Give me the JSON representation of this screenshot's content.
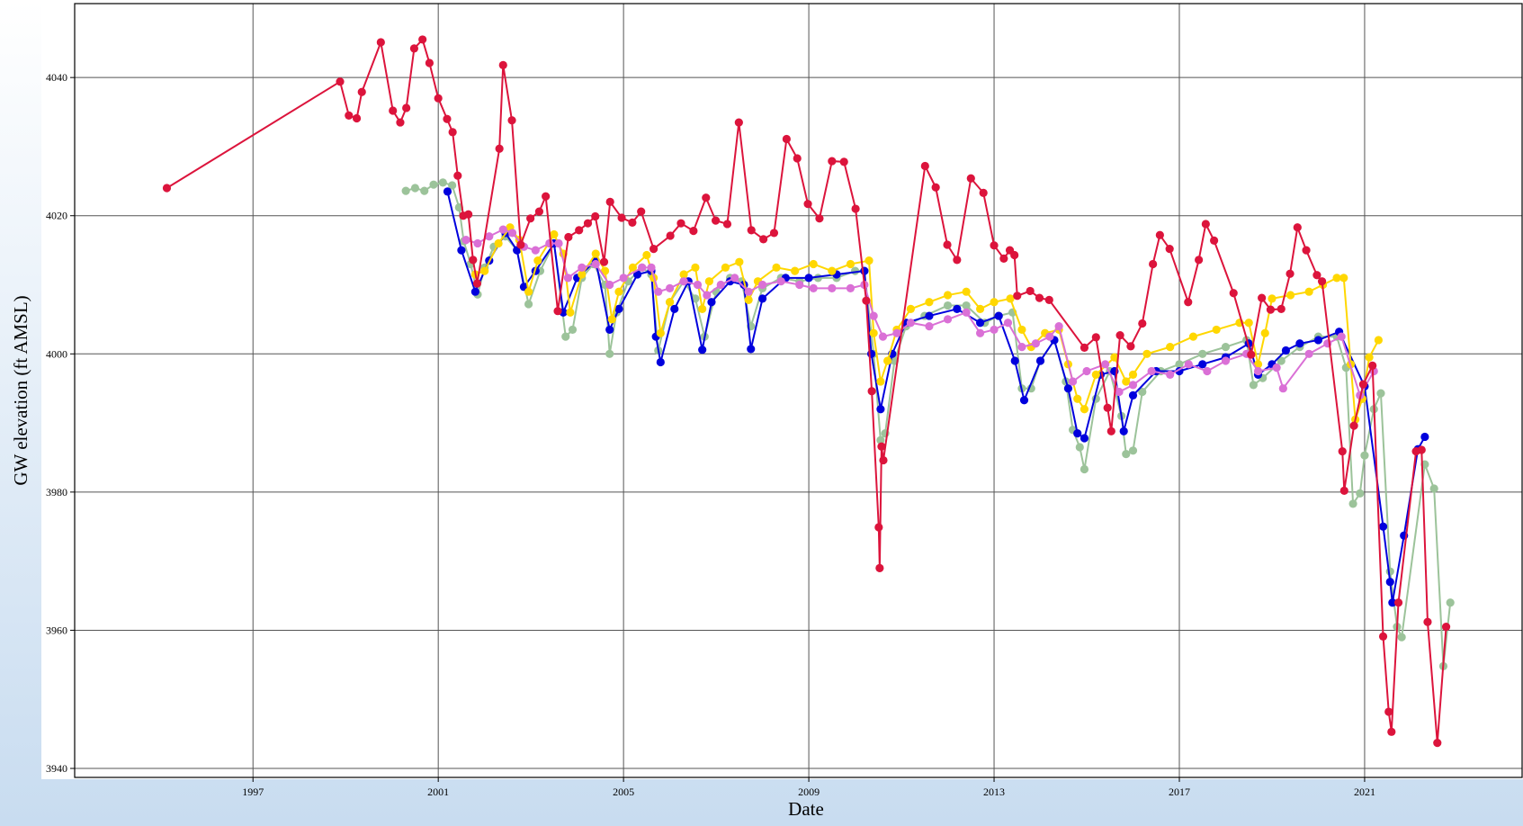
{
  "chart_data": {
    "type": "line",
    "x_label": "Date",
    "y_label": "GW elevation (ft AMSL)",
    "xlim": [
      1993.15,
      2024.4
    ],
    "ylim": [
      3938.7,
      4050.7
    ],
    "xticks": [
      1997,
      2001,
      2005,
      2009,
      2013,
      2017,
      2021
    ],
    "yticks": [
      3940,
      3960,
      3980,
      4000,
      4020,
      4040
    ],
    "grid": true,
    "series": [
      {
        "color": "#9cc39a",
        "x": [
          2000.3,
          2000.5,
          2000.7,
          2000.9,
          2001.1,
          2001.3,
          2001.45,
          2001.55,
          2001.7,
          2001.85,
          2002.0,
          2002.2,
          2002.45,
          2002.7,
          2002.95,
          2003.2,
          2003.5,
          2003.75,
          2003.9,
          2004.1,
          2004.35,
          2004.6,
          2004.7,
          2004.85,
          2005.1,
          2005.4,
          2005.6,
          2005.75,
          2006.0,
          2006.3,
          2006.55,
          2006.75,
          2007.0,
          2007.3,
          2007.55,
          2007.75,
          2008.0,
          2008.4,
          2008.8,
          2009.2,
          2009.6,
          2010.0,
          2010.2,
          2010.4,
          2010.55,
          2010.65,
          2010.85,
          2011.1,
          2011.5,
          2012.0,
          2012.4,
          2012.8,
          2013.1,
          2013.4,
          2013.6,
          2013.8,
          2014.0,
          2014.3,
          2014.55,
          2014.7,
          2014.85,
          2014.95,
          2015.2,
          2015.5,
          2015.75,
          2015.85,
          2016.0,
          2016.2,
          2016.6,
          2017.0,
          2017.5,
          2018.0,
          2018.45,
          2018.6,
          2018.8,
          2019.2,
          2019.6,
          2020.0,
          2020.4,
          2020.6,
          2020.75,
          2020.9,
          2021.0,
          2021.2,
          2021.35,
          2021.55,
          2021.7,
          2021.8,
          2022.3,
          2022.5,
          2022.7,
          2022.85
        ],
        "values": [
          4023.6,
          4024.0,
          4023.6,
          4024.5,
          4024.8,
          4024.4,
          4021.2,
          4016.3,
          4013.0,
          4008.6,
          4012.5,
          4015.5,
          4017.0,
          4015.0,
          4007.2,
          4012.0,
          4016.0,
          4002.5,
          4003.5,
          4011.0,
          4013.0,
          4010.0,
          4000.0,
          4006.0,
          4010.5,
          4012.5,
          4011.5,
          4000.5,
          4007.5,
          4010.5,
          4008.0,
          4002.5,
          4009.0,
          4011.0,
          4010.5,
          4004.0,
          4009.5,
          4011.0,
          4010.5,
          4011.0,
          4011.0,
          4012.0,
          4012.0,
          4000.0,
          3987.5,
          3988.5,
          3999.0,
          4004.0,
          4005.5,
          4007.0,
          4007.0,
          4004.5,
          4005.5,
          4006.0,
          3995.0,
          3995.0,
          3999.0,
          4002.0,
          3996.0,
          3989.0,
          3986.5,
          3983.3,
          3993.5,
          3997.5,
          3991.0,
          3985.5,
          3986.0,
          3994.5,
          3997.5,
          3998.5,
          4000.0,
          4001.0,
          4002.0,
          3995.5,
          3996.5,
          3999.0,
          4001.0,
          4002.5,
          4002.5,
          3998.0,
          3978.3,
          3979.8,
          3985.3,
          3992.0,
          3994.3,
          3968.5,
          3960.5,
          3959.0,
          3984.0,
          3980.5,
          3954.8,
          3964.0
        ]
      },
      {
        "color": "#0000dd",
        "x": [
          2001.2,
          2001.5,
          2001.8,
          2002.1,
          2002.45,
          2002.7,
          2002.85,
          2003.1,
          2003.5,
          2003.7,
          2004.0,
          2004.4,
          2004.7,
          2004.9,
          2005.3,
          2005.6,
          2005.7,
          2005.8,
          2006.1,
          2006.4,
          2006.7,
          2006.9,
          2007.3,
          2007.6,
          2007.75,
          2008.0,
          2008.5,
          2009.0,
          2009.6,
          2010.2,
          2010.35,
          2010.55,
          2010.8,
          2011.1,
          2011.6,
          2012.2,
          2012.7,
          2013.1,
          2013.45,
          2013.65,
          2014.0,
          2014.3,
          2014.6,
          2014.8,
          2014.95,
          2015.3,
          2015.6,
          2015.8,
          2016.0,
          2016.5,
          2017.0,
          2017.5,
          2018.0,
          2018.5,
          2018.7,
          2019.0,
          2019.3,
          2019.6,
          2020.0,
          2020.45,
          2021.0,
          2021.4,
          2021.55,
          2021.6,
          2021.85,
          2022.15,
          2022.3
        ],
        "values": [
          4023.5,
          4015.0,
          4009.0,
          4013.5,
          4017.5,
          4015.0,
          4009.7,
          4012.0,
          4016.0,
          4006.0,
          4011.0,
          4013.5,
          4003.5,
          4006.5,
          4011.5,
          4012.0,
          4002.5,
          3998.8,
          4006.5,
          4010.5,
          4000.6,
          4007.5,
          4010.5,
          4010.0,
          4000.7,
          4008.0,
          4011.0,
          4011.0,
          4011.5,
          4012.0,
          4000.0,
          3992.0,
          4000.0,
          4004.5,
          4005.5,
          4006.5,
          4004.5,
          4005.5,
          3999.0,
          3993.3,
          3999.0,
          4002.0,
          3995.0,
          3988.5,
          3987.8,
          3997.0,
          3997.5,
          3988.8,
          3994.0,
          3997.5,
          3997.5,
          3998.5,
          3999.5,
          4001.5,
          3997.0,
          3998.5,
          4000.5,
          4001.5,
          4002.0,
          4003.2,
          3995.3,
          3975.0,
          3967.0,
          3964.0,
          3973.7,
          3986.2,
          3988.0
        ]
      },
      {
        "color": "#ffd700",
        "x": [
          2001.8,
          2002.0,
          2002.3,
          2002.55,
          2002.75,
          2002.95,
          2003.15,
          2003.5,
          2003.7,
          2003.85,
          2004.1,
          2004.4,
          2004.6,
          2004.75,
          2004.9,
          2005.2,
          2005.5,
          2005.65,
          2005.8,
          2006.0,
          2006.3,
          2006.55,
          2006.7,
          2006.85,
          2007.2,
          2007.5,
          2007.7,
          2007.9,
          2008.3,
          2008.7,
          2009.1,
          2009.5,
          2009.9,
          2010.3,
          2010.4,
          2010.55,
          2010.7,
          2010.9,
          2011.2,
          2011.6,
          2012.0,
          2012.4,
          2012.7,
          2013.0,
          2013.35,
          2013.6,
          2013.8,
          2014.1,
          2014.4,
          2014.6,
          2014.8,
          2014.95,
          2015.2,
          2015.6,
          2015.85,
          2016.0,
          2016.3,
          2016.8,
          2017.3,
          2017.8,
          2018.3,
          2018.5,
          2018.7,
          2018.85,
          2019.0,
          2019.4,
          2019.8,
          2020.1,
          2020.4,
          2020.55,
          2020.7,
          2020.8,
          2020.95,
          2021.1,
          2021.3
        ],
        "values": [
          4011.5,
          4012.0,
          4016.0,
          4018.3,
          4016.5,
          4009.0,
          4013.5,
          4017.3,
          4014.5,
          4006.0,
          4011.5,
          4014.5,
          4012.0,
          4005.0,
          4009.0,
          4012.5,
          4014.3,
          4011.0,
          4003.0,
          4007.5,
          4011.5,
          4012.5,
          4006.5,
          4010.5,
          4012.5,
          4013.3,
          4007.8,
          4010.5,
          4012.5,
          4012.0,
          4013.0,
          4012.0,
          4013.0,
          4013.5,
          4003.0,
          3996.0,
          3999.0,
          4003.5,
          4006.5,
          4007.5,
          4008.5,
          4009.0,
          4006.5,
          4007.5,
          4008.0,
          4003.5,
          4001.0,
          4003.0,
          4003.5,
          3998.5,
          3993.5,
          3992.0,
          3997.0,
          3999.5,
          3996.0,
          3997.0,
          4000.0,
          4001.0,
          4002.5,
          4003.5,
          4004.5,
          4004.5,
          3998.5,
          4003.0,
          4008.0,
          4008.5,
          4009.0,
          4010.0,
          4011.0,
          4011.0,
          3998.5,
          3990.5,
          3993.5,
          3999.5,
          4002.0
        ]
      },
      {
        "color": "#da70d6",
        "x": [
          2001.6,
          2001.85,
          2002.1,
          2002.4,
          2002.6,
          2002.85,
          2003.1,
          2003.4,
          2003.6,
          2003.8,
          2004.1,
          2004.4,
          2004.7,
          2005.0,
          2005.4,
          2005.6,
          2005.75,
          2006.0,
          2006.3,
          2006.6,
          2006.8,
          2007.1,
          2007.4,
          2007.7,
          2008.0,
          2008.4,
          2008.8,
          2009.1,
          2009.5,
          2009.9,
          2010.2,
          2010.4,
          2010.6,
          2010.9,
          2011.2,
          2011.6,
          2012.0,
          2012.4,
          2012.7,
          2013.0,
          2013.3,
          2013.6,
          2013.9,
          2014.2,
          2014.4,
          2014.7,
          2015.0,
          2015.4,
          2015.7,
          2016.0,
          2016.4,
          2016.8,
          2017.2,
          2017.6,
          2018.0,
          2018.45,
          2018.7,
          2019.1,
          2019.24,
          2019.8,
          2020.2,
          2020.5,
          2020.9,
          2021.2
        ],
        "values": [
          4016.5,
          4016.0,
          4017.0,
          4018.0,
          4017.5,
          4015.5,
          4015.0,
          4016.0,
          4016.0,
          4011.0,
          4012.5,
          4013.0,
          4010.0,
          4011.0,
          4012.5,
          4012.5,
          4009.0,
          4009.5,
          4010.5,
          4010.0,
          4008.5,
          4010.0,
          4011.0,
          4009.0,
          4010.0,
          4010.5,
          4010.0,
          4009.5,
          4009.5,
          4009.5,
          4010.0,
          4005.5,
          4002.5,
          4003.0,
          4004.5,
          4004.0,
          4005.0,
          4006.0,
          4003.0,
          4003.5,
          4004.5,
          4001.0,
          4001.5,
          4002.5,
          4004.0,
          3996.0,
          3997.5,
          3998.5,
          3994.5,
          3995.5,
          3997.5,
          3997.0,
          3998.5,
          3997.5,
          3999.0,
          4000.0,
          3997.5,
          3998.0,
          3995.0,
          4000.0,
          4001.5,
          4002.5,
          3994.0,
          3997.5
        ]
      },
      {
        "color": "#dc143c",
        "x": [
          1995.14,
          1998.88,
          1999.07,
          1999.24,
          1999.35,
          1999.76,
          2000.02,
          2000.18,
          2000.31,
          2000.48,
          2000.66,
          2000.81,
          2001.0,
          2001.19,
          2001.31,
          2001.42,
          2001.54,
          2001.65,
          2001.75,
          2001.84,
          2002.32,
          2002.4,
          2002.59,
          2002.78,
          2002.99,
          2003.18,
          2003.32,
          2003.58,
          2003.81,
          2004.04,
          2004.23,
          2004.39,
          2004.58,
          2004.71,
          2004.96,
          2005.19,
          2005.38,
          2005.65,
          2006.01,
          2006.24,
          2006.51,
          2006.78,
          2006.99,
          2007.24,
          2007.49,
          2007.76,
          2008.02,
          2008.25,
          2008.52,
          2008.75,
          2008.98,
          2009.23,
          2009.5,
          2009.76,
          2010.01,
          2010.24,
          2010.36,
          2010.51,
          2010.53,
          2010.57,
          2010.61,
          2011.51,
          2011.74,
          2011.99,
          2012.2,
          2012.5,
          2012.77,
          2013.0,
          2013.21,
          2013.34,
          2013.44,
          2013.5,
          2013.78,
          2013.98,
          2014.19,
          2014.95,
          2015.2,
          2015.45,
          2015.53,
          2015.72,
          2015.95,
          2016.2,
          2016.43,
          2016.58,
          2016.79,
          2017.19,
          2017.42,
          2017.57,
          2017.75,
          2018.17,
          2018.55,
          2018.78,
          2018.97,
          2019.2,
          2019.39,
          2019.55,
          2019.74,
          2019.97,
          2020.08,
          2020.52,
          2020.56,
          2020.77,
          2020.97,
          2021.17,
          2021.4,
          2021.52,
          2021.58,
          2021.73,
          2022.11,
          2022.23,
          2022.36,
          2022.57,
          2022.76
        ],
        "values": [
          4024.0,
          4039.4,
          4034.5,
          4034.1,
          4037.9,
          4045.1,
          4035.2,
          4033.5,
          4035.6,
          4044.2,
          4045.5,
          4042.1,
          4037.0,
          4034.0,
          4032.1,
          4025.8,
          4020.0,
          4020.2,
          4013.6,
          4010.2,
          4029.7,
          4041.8,
          4033.8,
          4015.8,
          4019.6,
          4020.6,
          4022.8,
          4006.2,
          4016.9,
          4017.9,
          4018.9,
          4019.9,
          4013.3,
          4022.0,
          4019.7,
          4019.0,
          4020.6,
          4015.2,
          4017.1,
          4018.9,
          4017.8,
          4022.6,
          4019.3,
          4018.8,
          4033.5,
          4017.9,
          4016.6,
          4017.5,
          4031.1,
          4028.3,
          4021.7,
          4019.6,
          4027.9,
          4027.8,
          4021.0,
          4007.7,
          3994.6,
          3974.9,
          3969.0,
          3986.6,
          3984.6,
          4027.2,
          4024.1,
          4015.8,
          4013.6,
          4025.4,
          4023.3,
          4015.7,
          4013.8,
          4015.0,
          4014.3,
          4008.4,
          4009.1,
          4008.1,
          4007.8,
          4000.9,
          4002.4,
          3992.2,
          3988.8,
          4002.7,
          4001.1,
          4004.4,
          4013.0,
          4017.2,
          4015.2,
          4007.5,
          4013.6,
          4018.8,
          4016.4,
          4008.8,
          3999.9,
          4008.1,
          4006.4,
          4006.5,
          4011.6,
          4018.3,
          4015.0,
          4011.4,
          4010.5,
          3985.9,
          3980.2,
          3989.6,
          3995.6,
          3998.3,
          3959.1,
          3948.2,
          3945.3,
          3964.0,
          3985.9,
          3986.1,
          3961.2,
          3943.7,
          3960.5
        ]
      }
    ]
  }
}
